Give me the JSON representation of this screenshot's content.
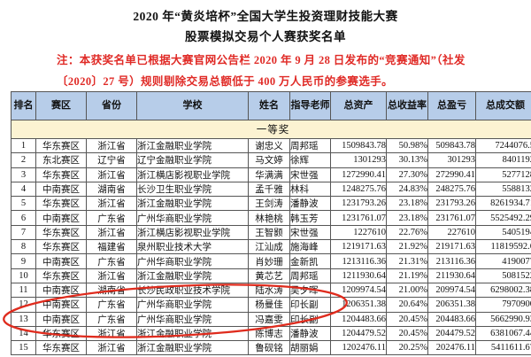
{
  "document": {
    "title_line1": "2020 年“黄炎培杯”全国大学生投资理财技能大赛",
    "title_line2": "股票模拟交易个人赛获奖名单",
    "note_line1": "注：本获奖名单已根据大赛官网公告栏 2020 年 9 月 28 日发布的“竞赛通知”（社发",
    "note_line2": "〔2020〕27 号）规则剔除交易总额低于 400 万人民币的参赛选手。"
  },
  "colors": {
    "header_bg": "#b7cde9",
    "band_bg": "#fcf3d2",
    "note_red": "#e02a26",
    "annotation_red": "#df2b1d",
    "border": "#565656"
  },
  "annotation": {
    "shape": "hand-drawn-red-ellipse",
    "highlights_rows": [
      12,
      13
    ]
  },
  "table": {
    "section_label": "一等奖",
    "columns": [
      {
        "key": "rank",
        "label": "排名"
      },
      {
        "key": "region",
        "label": "赛区"
      },
      {
        "key": "province",
        "label": "省份"
      },
      {
        "key": "school",
        "label": "学校"
      },
      {
        "key": "name",
        "label": "姓名"
      },
      {
        "key": "teacher",
        "label": "指导老师"
      },
      {
        "key": "assets",
        "label": "总资产"
      },
      {
        "key": "return_rate",
        "label": "总收益率"
      },
      {
        "key": "pnl",
        "label": "总盈亏"
      },
      {
        "key": "volume",
        "label": "总成交额"
      }
    ],
    "rows": [
      {
        "rank": "1",
        "region": "华东赛区",
        "province": "浙江省",
        "school": "浙江金融职业学院",
        "name": "谢忠义",
        "teacher": "周邦瑶",
        "assets": "1509843.78",
        "return_rate": "50.98%",
        "pnl": "509843.78",
        "volume": "7244076.5"
      },
      {
        "rank": "2",
        "region": "东北赛区",
        "province": "辽宁省",
        "school": "辽宁金融职业学院",
        "name": "马文婷",
        "teacher": "徐辉",
        "assets": "1301293",
        "return_rate": "30.13%",
        "pnl": "301293",
        "volume": "8401192"
      },
      {
        "rank": "3",
        "region": "华东赛区",
        "province": "浙江省",
        "school": "浙江横店影视职业学院",
        "name": "华满满",
        "teacher": "宋世强",
        "assets": "1272990.41",
        "return_rate": "27.30%",
        "pnl": "272990.41",
        "volume": "5277128"
      },
      {
        "rank": "4",
        "region": "中南赛区",
        "province": "湖南省",
        "school": "长沙卫生职业学院",
        "name": "孟千雅",
        "teacher": "林科",
        "assets": "1248275.76",
        "return_rate": "24.83%",
        "pnl": "248275.76",
        "volume": "5588132"
      },
      {
        "rank": "5",
        "region": "华东赛区",
        "province": "浙江省",
        "school": "浙江金融职业学院",
        "name": "王剑涛",
        "teacher": "潘静波",
        "assets": "1231793.26",
        "return_rate": "23.18%",
        "pnl": "231793.26",
        "volume": "8261934.71"
      },
      {
        "rank": "6",
        "region": "中南赛区",
        "province": "广东省",
        "school": "广州华商职业学院",
        "name": "林艳桃",
        "teacher": "韩玉芳",
        "assets": "1231761.07",
        "return_rate": "23.18%",
        "pnl": "231761.07",
        "volume": "5525492.29"
      },
      {
        "rank": "7",
        "region": "华东赛区",
        "province": "浙江省",
        "school": "浙江横店影视职业学院",
        "name": "王智颢",
        "teacher": "宋世强",
        "assets": "1227610",
        "return_rate": "22.76%",
        "pnl": "227610",
        "volume": "5405194"
      },
      {
        "rank": "8",
        "region": "华东赛区",
        "province": "福建省",
        "school": "泉州职业技术大学",
        "name": "江汕成",
        "teacher": "施海峰",
        "assets": "1219171.63",
        "return_rate": "21.92%",
        "pnl": "219171.63",
        "volume": "11819592.6"
      },
      {
        "rank": "9",
        "region": "中南赛区",
        "province": "广东省",
        "school": "广州华商职业学院",
        "name": "肖妙珊",
        "teacher": "金新凯",
        "assets": "1213116.36",
        "return_rate": "21.31%",
        "pnl": "213116.36",
        "volume": "4190077"
      },
      {
        "rank": "10",
        "region": "华东赛区",
        "province": "浙江省",
        "school": "浙江金融职业学院",
        "name": "黄芯艺",
        "teacher": "周邦瑶",
        "assets": "1211930.64",
        "return_rate": "21.19%",
        "pnl": "211930.64",
        "volume": "5081522"
      },
      {
        "rank": "11",
        "region": "中南赛区",
        "province": "湖南省",
        "school": "长沙民政职业技术学院",
        "name": "陆水涛",
        "teacher": "吴夕晖",
        "assets": "1209974.54",
        "return_rate": "21.00%",
        "pnl": "209974.54",
        "volume": "6298002.38"
      },
      {
        "rank": "12",
        "region": "中南赛区",
        "province": "广东省",
        "school": "广州华商职业学院",
        "name": "杨曼佳",
        "teacher": "印长副",
        "assets": "1206351.38",
        "return_rate": "20.64%",
        "pnl": "206351.38",
        "volume": "7970900"
      },
      {
        "rank": "13",
        "region": "中南赛区",
        "province": "广东省",
        "school": "广州华商职业学院",
        "name": "冯嘉雯",
        "teacher": "印长副",
        "assets": "1204483.66",
        "return_rate": "20.45%",
        "pnl": "204483.66",
        "volume": "5662990.93"
      },
      {
        "rank": "14",
        "region": "华东赛区",
        "province": "浙江省",
        "school": "浙江金融职业学院",
        "name": "陈博志",
        "teacher": "潘静波",
        "assets": "1204479.52",
        "return_rate": "20.45%",
        "pnl": "204479.52",
        "volume": "6381067.44"
      },
      {
        "rank": "15",
        "region": "华东赛区",
        "province": "浙江省",
        "school": "浙江金融职业学院",
        "name": "鲁砚铭",
        "teacher": "胡丽娟",
        "assets": "1202476.11",
        "return_rate": "20.25%",
        "pnl": "202476.11",
        "volume": "5411611.67"
      }
    ]
  }
}
